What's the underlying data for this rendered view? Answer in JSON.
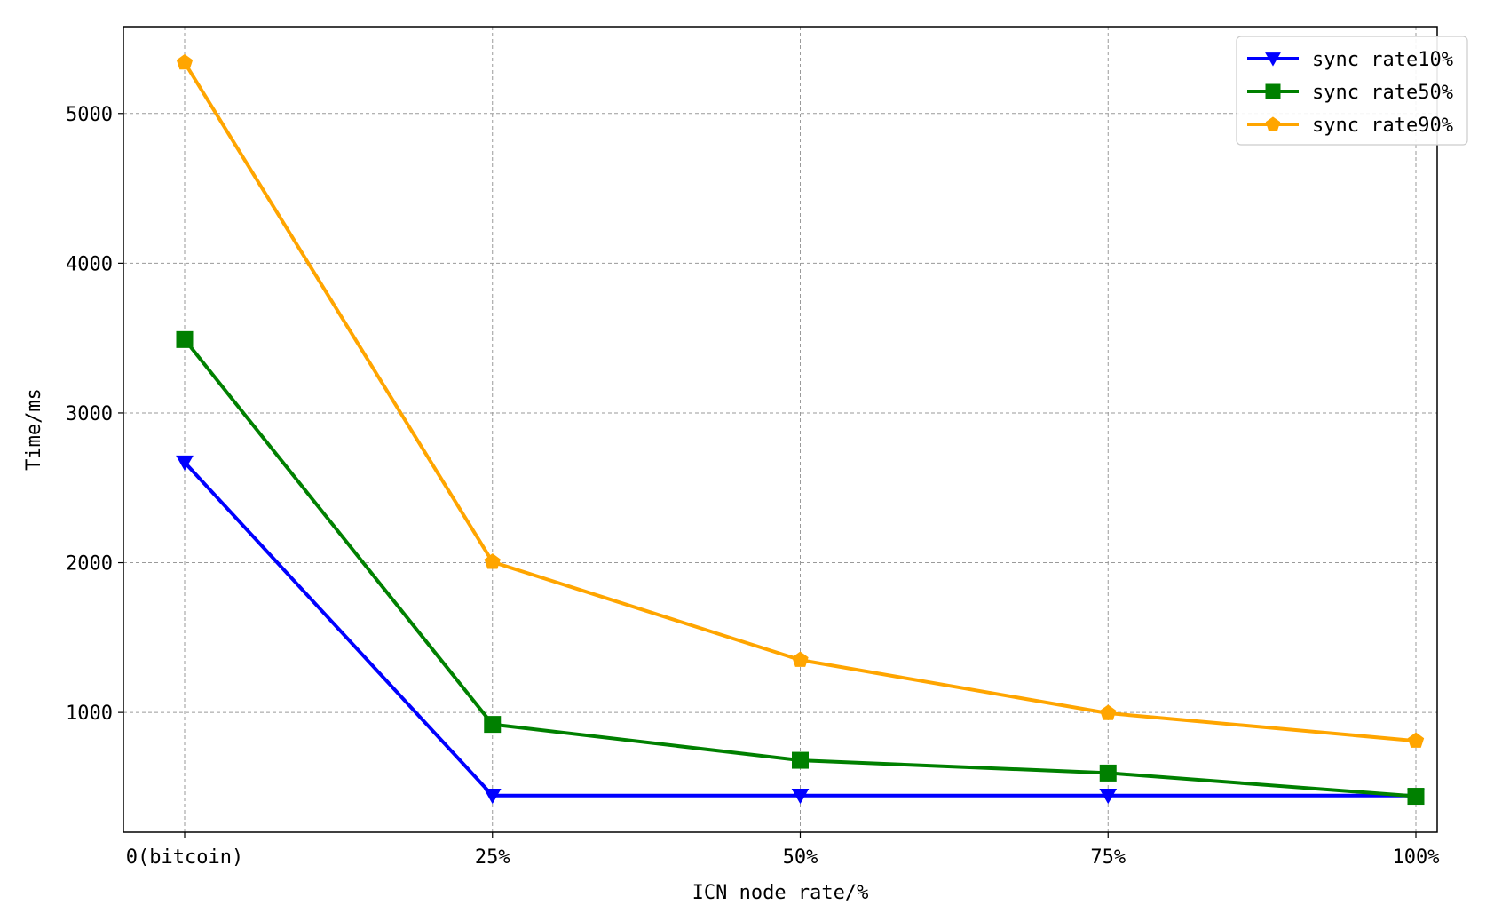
{
  "chart_data": {
    "type": "line",
    "title": "",
    "xlabel": "ICN node rate/%",
    "ylabel": "Time/ms",
    "categories": [
      "0(bitcoin)",
      "25%",
      "50%",
      "75%",
      "100%"
    ],
    "ylim": [
      200,
      5580
    ],
    "yticks": [
      1000,
      2000,
      3000,
      4000,
      5000
    ],
    "grid": true,
    "legend_position": "top-right",
    "series": [
      {
        "name": "sync rate10%",
        "color": "#0000ff",
        "marker": "triangle-down",
        "values": [
          2670,
          445,
          445,
          445,
          445
        ]
      },
      {
        "name": "sync rate50%",
        "color": "#008000",
        "marker": "square",
        "values": [
          3490,
          920,
          680,
          595,
          440
        ]
      },
      {
        "name": "sync rate90%",
        "color": "#ffa500",
        "marker": "pentagon",
        "values": [
          5340,
          2005,
          1350,
          995,
          810
        ]
      }
    ]
  }
}
